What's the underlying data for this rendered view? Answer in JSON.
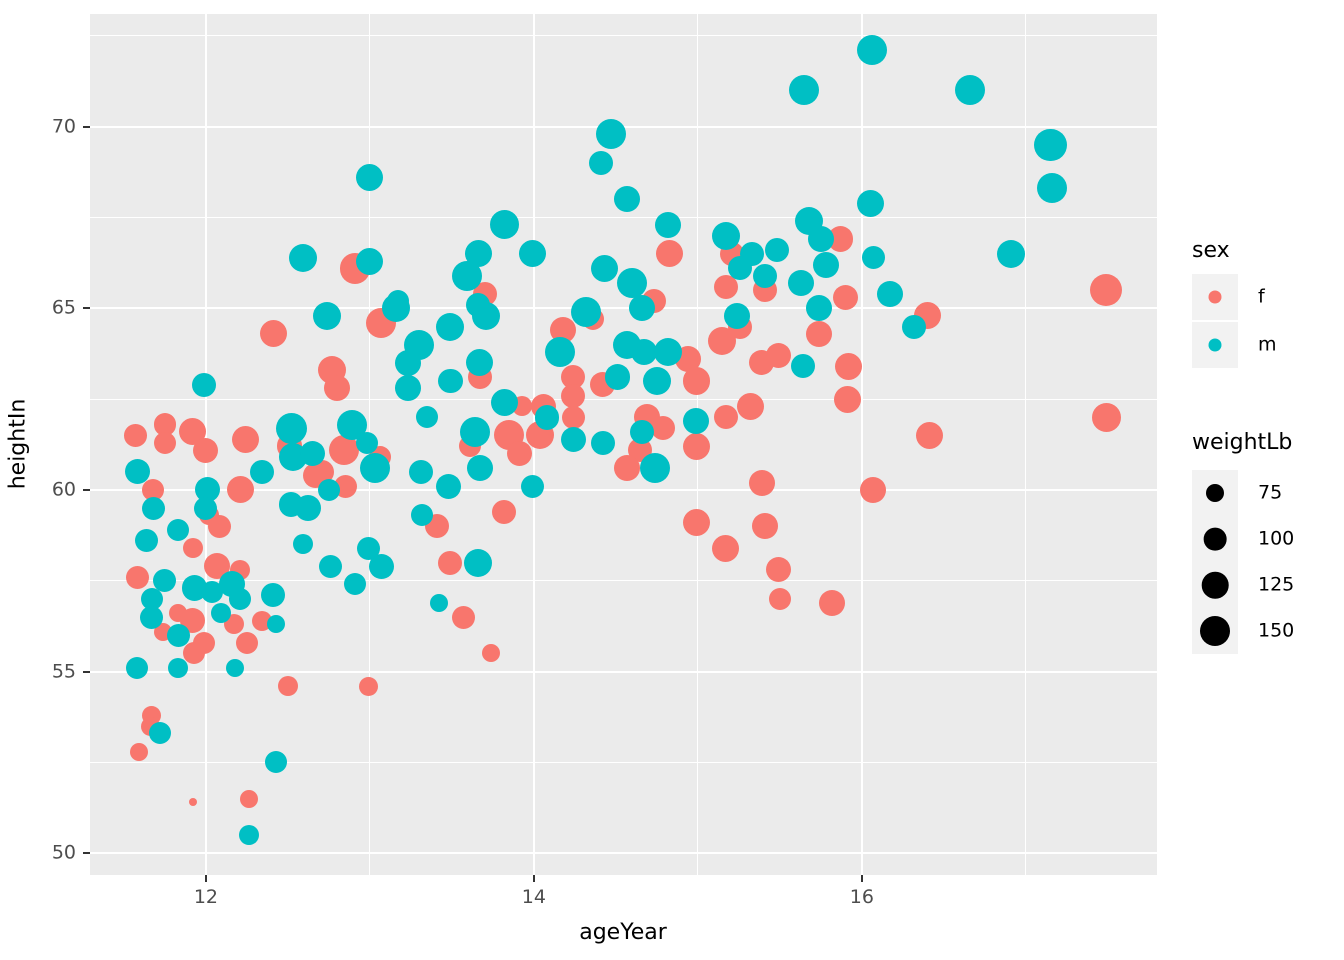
{
  "chart_data": {
    "type": "scatter",
    "title": "",
    "xlabel": "ageYear",
    "ylabel": "heightIn",
    "xlim": [
      11.293,
      17.8
    ],
    "ylim": [
      49.4,
      73.104
    ],
    "x_major_ticks": [
      12,
      14,
      16
    ],
    "x_minor_ticks": [
      13,
      15,
      17
    ],
    "y_major_ticks": [
      50,
      55,
      60,
      65,
      70
    ],
    "y_minor_ticks": [
      52.5,
      57.5,
      62.5,
      67.5,
      72.5
    ],
    "grid": "white major+minor gridlines on grey panel",
    "legend_position": "right",
    "point_format": "[ageYear, heightIn, weightLb]",
    "series": [
      {
        "name": "f",
        "color": "#F8766D",
        "points": [
          [
            12.91,
            66.1,
            155
          ],
          [
            13.7,
            65.4,
            108
          ],
          [
            14.83,
            66.5,
            128
          ],
          [
            15.21,
            66.5,
            108
          ],
          [
            15.87,
            66.9,
            120
          ],
          [
            15.17,
            65.6,
            108
          ],
          [
            15.41,
            65.5,
            108
          ],
          [
            15.9,
            65.3,
            120
          ],
          [
            14.73,
            65.2,
            108
          ],
          [
            17.49,
            65.5,
            170
          ],
          [
            16.4,
            64.8,
            128
          ],
          [
            16.41,
            61.5,
            128
          ],
          [
            17.49,
            62.0,
            142
          ],
          [
            12.41,
            64.3,
            128
          ],
          [
            12.77,
            63.3,
            135
          ],
          [
            12.8,
            62.8,
            120
          ],
          [
            11.57,
            61.5,
            100
          ],
          [
            11.75,
            61.8,
            100
          ],
          [
            11.75,
            61.3,
            96
          ],
          [
            11.92,
            61.6,
            128
          ],
          [
            12.0,
            61.1,
            114
          ],
          [
            12.24,
            61.4,
            128
          ],
          [
            12.51,
            61.2,
            120
          ],
          [
            12.67,
            60.4,
            114
          ],
          [
            12.85,
            60.1,
            102
          ],
          [
            11.68,
            60.0,
            96
          ],
          [
            12.02,
            59.3,
            85
          ],
          [
            12.08,
            59.0,
            102
          ],
          [
            12.21,
            60.0,
            128
          ],
          [
            12.71,
            60.5,
            108
          ],
          [
            12.84,
            61.1,
            150
          ],
          [
            11.92,
            58.4,
            85
          ],
          [
            12.07,
            57.9,
            120
          ],
          [
            12.21,
            57.8,
            85
          ],
          [
            11.58,
            57.6,
            102
          ],
          [
            13.07,
            64.6,
            150
          ],
          [
            13.67,
            63.1,
            108
          ],
          [
            13.93,
            62.3,
            85
          ],
          [
            14.06,
            62.3,
            114
          ],
          [
            14.18,
            64.4,
            120
          ],
          [
            14.36,
            64.7,
            96
          ],
          [
            14.24,
            63.1,
            108
          ],
          [
            14.24,
            62.6,
            108
          ],
          [
            14.24,
            62.0,
            102
          ],
          [
            14.42,
            62.9,
            114
          ],
          [
            13.61,
            61.2,
            96
          ],
          [
            13.85,
            61.5,
            150
          ],
          [
            14.04,
            61.5,
            135
          ],
          [
            13.91,
            61.0,
            114
          ],
          [
            13.06,
            60.9,
            96
          ],
          [
            13.82,
            59.4,
            108
          ],
          [
            13.41,
            59.0,
            108
          ],
          [
            13.49,
            58.0,
            108
          ],
          [
            14.94,
            63.6,
            120
          ],
          [
            14.99,
            63.0,
            128
          ],
          [
            15.15,
            64.1,
            135
          ],
          [
            15.26,
            64.5,
            108
          ],
          [
            15.74,
            64.3,
            120
          ],
          [
            15.39,
            63.5,
            114
          ],
          [
            15.49,
            63.7,
            114
          ],
          [
            15.92,
            63.4,
            128
          ],
          [
            15.91,
            62.5,
            128
          ],
          [
            15.32,
            62.3,
            128
          ],
          [
            15.17,
            62.0,
            108
          ],
          [
            14.99,
            61.2,
            128
          ],
          [
            14.69,
            62.0,
            120
          ],
          [
            14.79,
            61.7,
            108
          ],
          [
            14.65,
            61.1,
            108
          ],
          [
            14.57,
            60.6,
            120
          ],
          [
            15.39,
            60.2,
            120
          ],
          [
            16.07,
            60.0,
            120
          ],
          [
            14.99,
            59.1,
            128
          ],
          [
            15.41,
            59.0,
            120
          ],
          [
            15.17,
            58.4,
            128
          ],
          [
            15.49,
            57.8,
            114
          ],
          [
            15.5,
            57.0,
            96
          ],
          [
            15.82,
            56.9,
            120
          ],
          [
            11.83,
            56.6,
            75
          ],
          [
            11.92,
            56.4,
            114
          ],
          [
            11.74,
            56.1,
            75
          ],
          [
            11.99,
            55.8,
            96
          ],
          [
            11.93,
            55.5,
            96
          ],
          [
            12.17,
            56.3,
            85
          ],
          [
            12.25,
            55.8,
            96
          ],
          [
            12.34,
            56.4,
            85
          ],
          [
            12.5,
            54.6,
            85
          ],
          [
            11.67,
            53.8,
            80
          ],
          [
            11.66,
            53.5,
            80
          ],
          [
            11.59,
            52.8,
            75
          ],
          [
            12.26,
            51.5,
            75
          ],
          [
            11.92,
            51.4,
            50
          ],
          [
            13.57,
            56.5,
            102
          ],
          [
            13.74,
            55.5,
            75
          ],
          [
            12.99,
            54.6,
            80
          ]
        ]
      },
      {
        "name": "m",
        "color": "#00BFC4",
        "points": [
          [
            12.59,
            66.4,
            135
          ],
          [
            13.0,
            66.3,
            128
          ],
          [
            13.0,
            68.6,
            128
          ],
          [
            14.47,
            69.8,
            150
          ],
          [
            14.41,
            69.0,
            108
          ],
          [
            13.82,
            67.3,
            142
          ],
          [
            13.99,
            66.5,
            128
          ],
          [
            13.66,
            66.5,
            128
          ],
          [
            13.59,
            65.9,
            150
          ],
          [
            13.17,
            65.2,
            96
          ],
          [
            14.43,
            66.1,
            128
          ],
          [
            13.66,
            65.1,
            108
          ],
          [
            15.65,
            71.0,
            150
          ],
          [
            16.06,
            72.1,
            150
          ],
          [
            14.57,
            68.0,
            120
          ],
          [
            14.82,
            67.3,
            120
          ],
          [
            15.17,
            67.0,
            135
          ],
          [
            15.33,
            66.5,
            108
          ],
          [
            15.48,
            66.6,
            108
          ],
          [
            15.68,
            67.4,
            135
          ],
          [
            15.75,
            66.9,
            120
          ],
          [
            15.78,
            66.2,
            120
          ],
          [
            15.26,
            66.1,
            108
          ],
          [
            15.41,
            65.9,
            108
          ],
          [
            15.63,
            65.7,
            120
          ],
          [
            16.05,
            67.9,
            128
          ],
          [
            16.07,
            66.4,
            102
          ],
          [
            14.6,
            65.7,
            150
          ],
          [
            16.66,
            71.0,
            150
          ],
          [
            17.15,
            69.5,
            170
          ],
          [
            17.16,
            68.3,
            150
          ],
          [
            16.91,
            66.5,
            135
          ],
          [
            16.17,
            65.4,
            120
          ],
          [
            16.32,
            64.5,
            108
          ],
          [
            12.74,
            64.8,
            135
          ],
          [
            11.99,
            62.9,
            108
          ],
          [
            12.89,
            61.8,
            150
          ],
          [
            12.52,
            61.7,
            160
          ],
          [
            12.53,
            60.9,
            135
          ],
          [
            12.65,
            61.0,
            114
          ],
          [
            12.75,
            60.0,
            96
          ],
          [
            11.58,
            60.5,
            114
          ],
          [
            11.68,
            59.5,
            102
          ],
          [
            12.01,
            60.0,
            114
          ],
          [
            12.0,
            59.5,
            102
          ],
          [
            12.34,
            60.5,
            108
          ],
          [
            12.52,
            59.6,
            108
          ],
          [
            12.62,
            59.5,
            120
          ],
          [
            12.98,
            61.3,
            96
          ],
          [
            11.64,
            58.6,
            102
          ],
          [
            11.83,
            58.9,
            96
          ],
          [
            11.75,
            57.5,
            102
          ],
          [
            11.93,
            57.3,
            120
          ],
          [
            12.04,
            57.2,
            96
          ],
          [
            12.16,
            57.4,
            120
          ],
          [
            12.21,
            57.0,
            96
          ],
          [
            12.41,
            57.1,
            108
          ],
          [
            12.59,
            58.5,
            85
          ],
          [
            12.76,
            57.9,
            102
          ],
          [
            13.07,
            57.9,
            114
          ],
          [
            12.99,
            58.4,
            102
          ],
          [
            12.91,
            57.4,
            96
          ],
          [
            13.16,
            65.0,
            135
          ],
          [
            13.49,
            64.5,
            135
          ],
          [
            13.71,
            64.8,
            135
          ],
          [
            13.3,
            64.0,
            150
          ],
          [
            13.23,
            63.5,
            120
          ],
          [
            13.23,
            62.8,
            120
          ],
          [
            13.49,
            63.0,
            114
          ],
          [
            13.67,
            63.5,
            128
          ],
          [
            13.82,
            62.4,
            128
          ],
          [
            14.08,
            62.0,
            114
          ],
          [
            14.16,
            63.8,
            150
          ],
          [
            14.32,
            64.9,
            150
          ],
          [
            14.24,
            61.4,
            114
          ],
          [
            14.42,
            61.3,
            108
          ],
          [
            13.35,
            62.0,
            96
          ],
          [
            13.64,
            61.6,
            150
          ],
          [
            13.03,
            60.6,
            150
          ],
          [
            13.31,
            60.5,
            108
          ],
          [
            13.67,
            60.6,
            120
          ],
          [
            13.48,
            60.1,
            114
          ],
          [
            13.99,
            60.1,
            102
          ],
          [
            13.32,
            59.3,
            96
          ],
          [
            13.66,
            58.0,
            135
          ],
          [
            14.66,
            65.0,
            120
          ],
          [
            14.57,
            64.0,
            135
          ],
          [
            14.67,
            63.8,
            120
          ],
          [
            14.51,
            63.1,
            120
          ],
          [
            14.82,
            63.8,
            135
          ],
          [
            14.75,
            63.0,
            135
          ],
          [
            15.24,
            64.8,
            120
          ],
          [
            15.74,
            65.0,
            120
          ],
          [
            15.64,
            63.4,
            108
          ],
          [
            14.99,
            61.9,
            120
          ],
          [
            14.66,
            61.6,
            108
          ],
          [
            14.74,
            60.6,
            150
          ],
          [
            11.67,
            57.0,
            96
          ],
          [
            11.67,
            56.5,
            102
          ],
          [
            11.83,
            56.0,
            102
          ],
          [
            12.43,
            56.3,
            75
          ],
          [
            12.09,
            56.6,
            85
          ],
          [
            11.58,
            55.1,
            96
          ],
          [
            11.83,
            55.1,
            85
          ],
          [
            12.18,
            55.1,
            75
          ],
          [
            11.72,
            53.3,
            96
          ],
          [
            12.43,
            52.5,
            96
          ],
          [
            12.26,
            50.5,
            85
          ],
          [
            13.42,
            56.9,
            75
          ]
        ]
      }
    ],
    "color_legend": {
      "title": "sex",
      "entries": [
        {
          "label": "f",
          "color": "#F8766D"
        },
        {
          "label": "m",
          "color": "#00BFC4"
        }
      ]
    },
    "size_legend": {
      "title": "weightLb",
      "values": [
        75,
        100,
        125,
        150
      ],
      "color": "#000000"
    }
  },
  "labels": {
    "x_axis_title": "ageYear",
    "y_axis_title": "heightIn",
    "sex_legend_title": "sex",
    "weight_legend_title": "weightLb"
  },
  "style": {
    "panel_bg": "#EBEBEB",
    "grid_color": "#FFFFFF",
    "tick_label_color": "#4D4D4D",
    "axis_title_color": "#000000",
    "legend_key_bg": "#F2F2F2",
    "page_bg": "#FFFFFF",
    "female_color": "#F8766D",
    "male_color": "#00BFC4"
  }
}
